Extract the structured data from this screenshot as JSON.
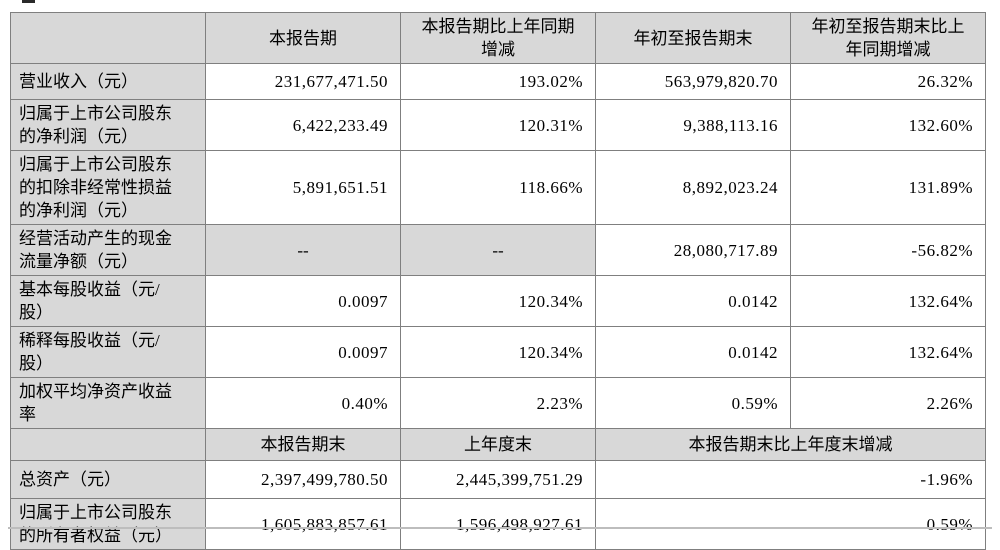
{
  "colors": {
    "cell_shade": "#d8d8d8",
    "border": "#7f7f7f",
    "text": "#000000",
    "background": "#ffffff"
  },
  "table": {
    "top_header": {
      "blank": "",
      "current_period": "本报告期",
      "current_period_yoy_change": "本报告期比上年同期\n增减",
      "year_to_date": "年初至报告期末",
      "year_to_date_yoy_change": "年初至报告期末比上\n年同期增减"
    },
    "top_rows": [
      {
        "label": "营业收入（元）",
        "current": "231,677,471.50",
        "yoy_change": "193.02%",
        "ytd": "563,979,820.70",
        "ytd_yoy_change": "26.32%"
      },
      {
        "label": "归属于上市公司股东\n的净利润（元）",
        "current": "6,422,233.49",
        "yoy_change": "120.31%",
        "ytd": "9,388,113.16",
        "ytd_yoy_change": "132.60%"
      },
      {
        "label": "归属于上市公司股东\n的扣除非经常性损益\n的净利润（元）",
        "current": "5,891,651.51",
        "yoy_change": "118.66%",
        "ytd": "8,892,023.24",
        "ytd_yoy_change": "131.89%"
      },
      {
        "label": "经营活动产生的现金\n流量净额（元）",
        "current": "--",
        "yoy_change": "--",
        "ytd": "28,080,717.89",
        "ytd_yoy_change": "-56.82%"
      },
      {
        "label": "基本每股收益（元/\n股）",
        "current": "0.0097",
        "yoy_change": "120.34%",
        "ytd": "0.0142",
        "ytd_yoy_change": "132.64%"
      },
      {
        "label": "稀释每股收益（元/\n股）",
        "current": "0.0097",
        "yoy_change": "120.34%",
        "ytd": "0.0142",
        "ytd_yoy_change": "132.64%"
      },
      {
        "label": "加权平均净资产收益\n率",
        "current": "0.40%",
        "yoy_change": "2.23%",
        "ytd": "0.59%",
        "ytd_yoy_change": "2.26%"
      }
    ],
    "bottom_header": {
      "blank": "",
      "current_period_end": "本报告期末",
      "prior_year_end": "上年度末",
      "period_end_change": "本报告期末比上年度末增减"
    },
    "bottom_rows": [
      {
        "label": "总资产（元）",
        "current_end": "2,397,499,780.50",
        "prior_end": "2,445,399,751.29",
        "change": "-1.96%"
      },
      {
        "label": "归属于上市公司股东\n的所有者权益（元）",
        "current_end": "1,605,883,857.61",
        "prior_end": "1,596,498,927.61",
        "change": "0.59%"
      }
    ]
  }
}
